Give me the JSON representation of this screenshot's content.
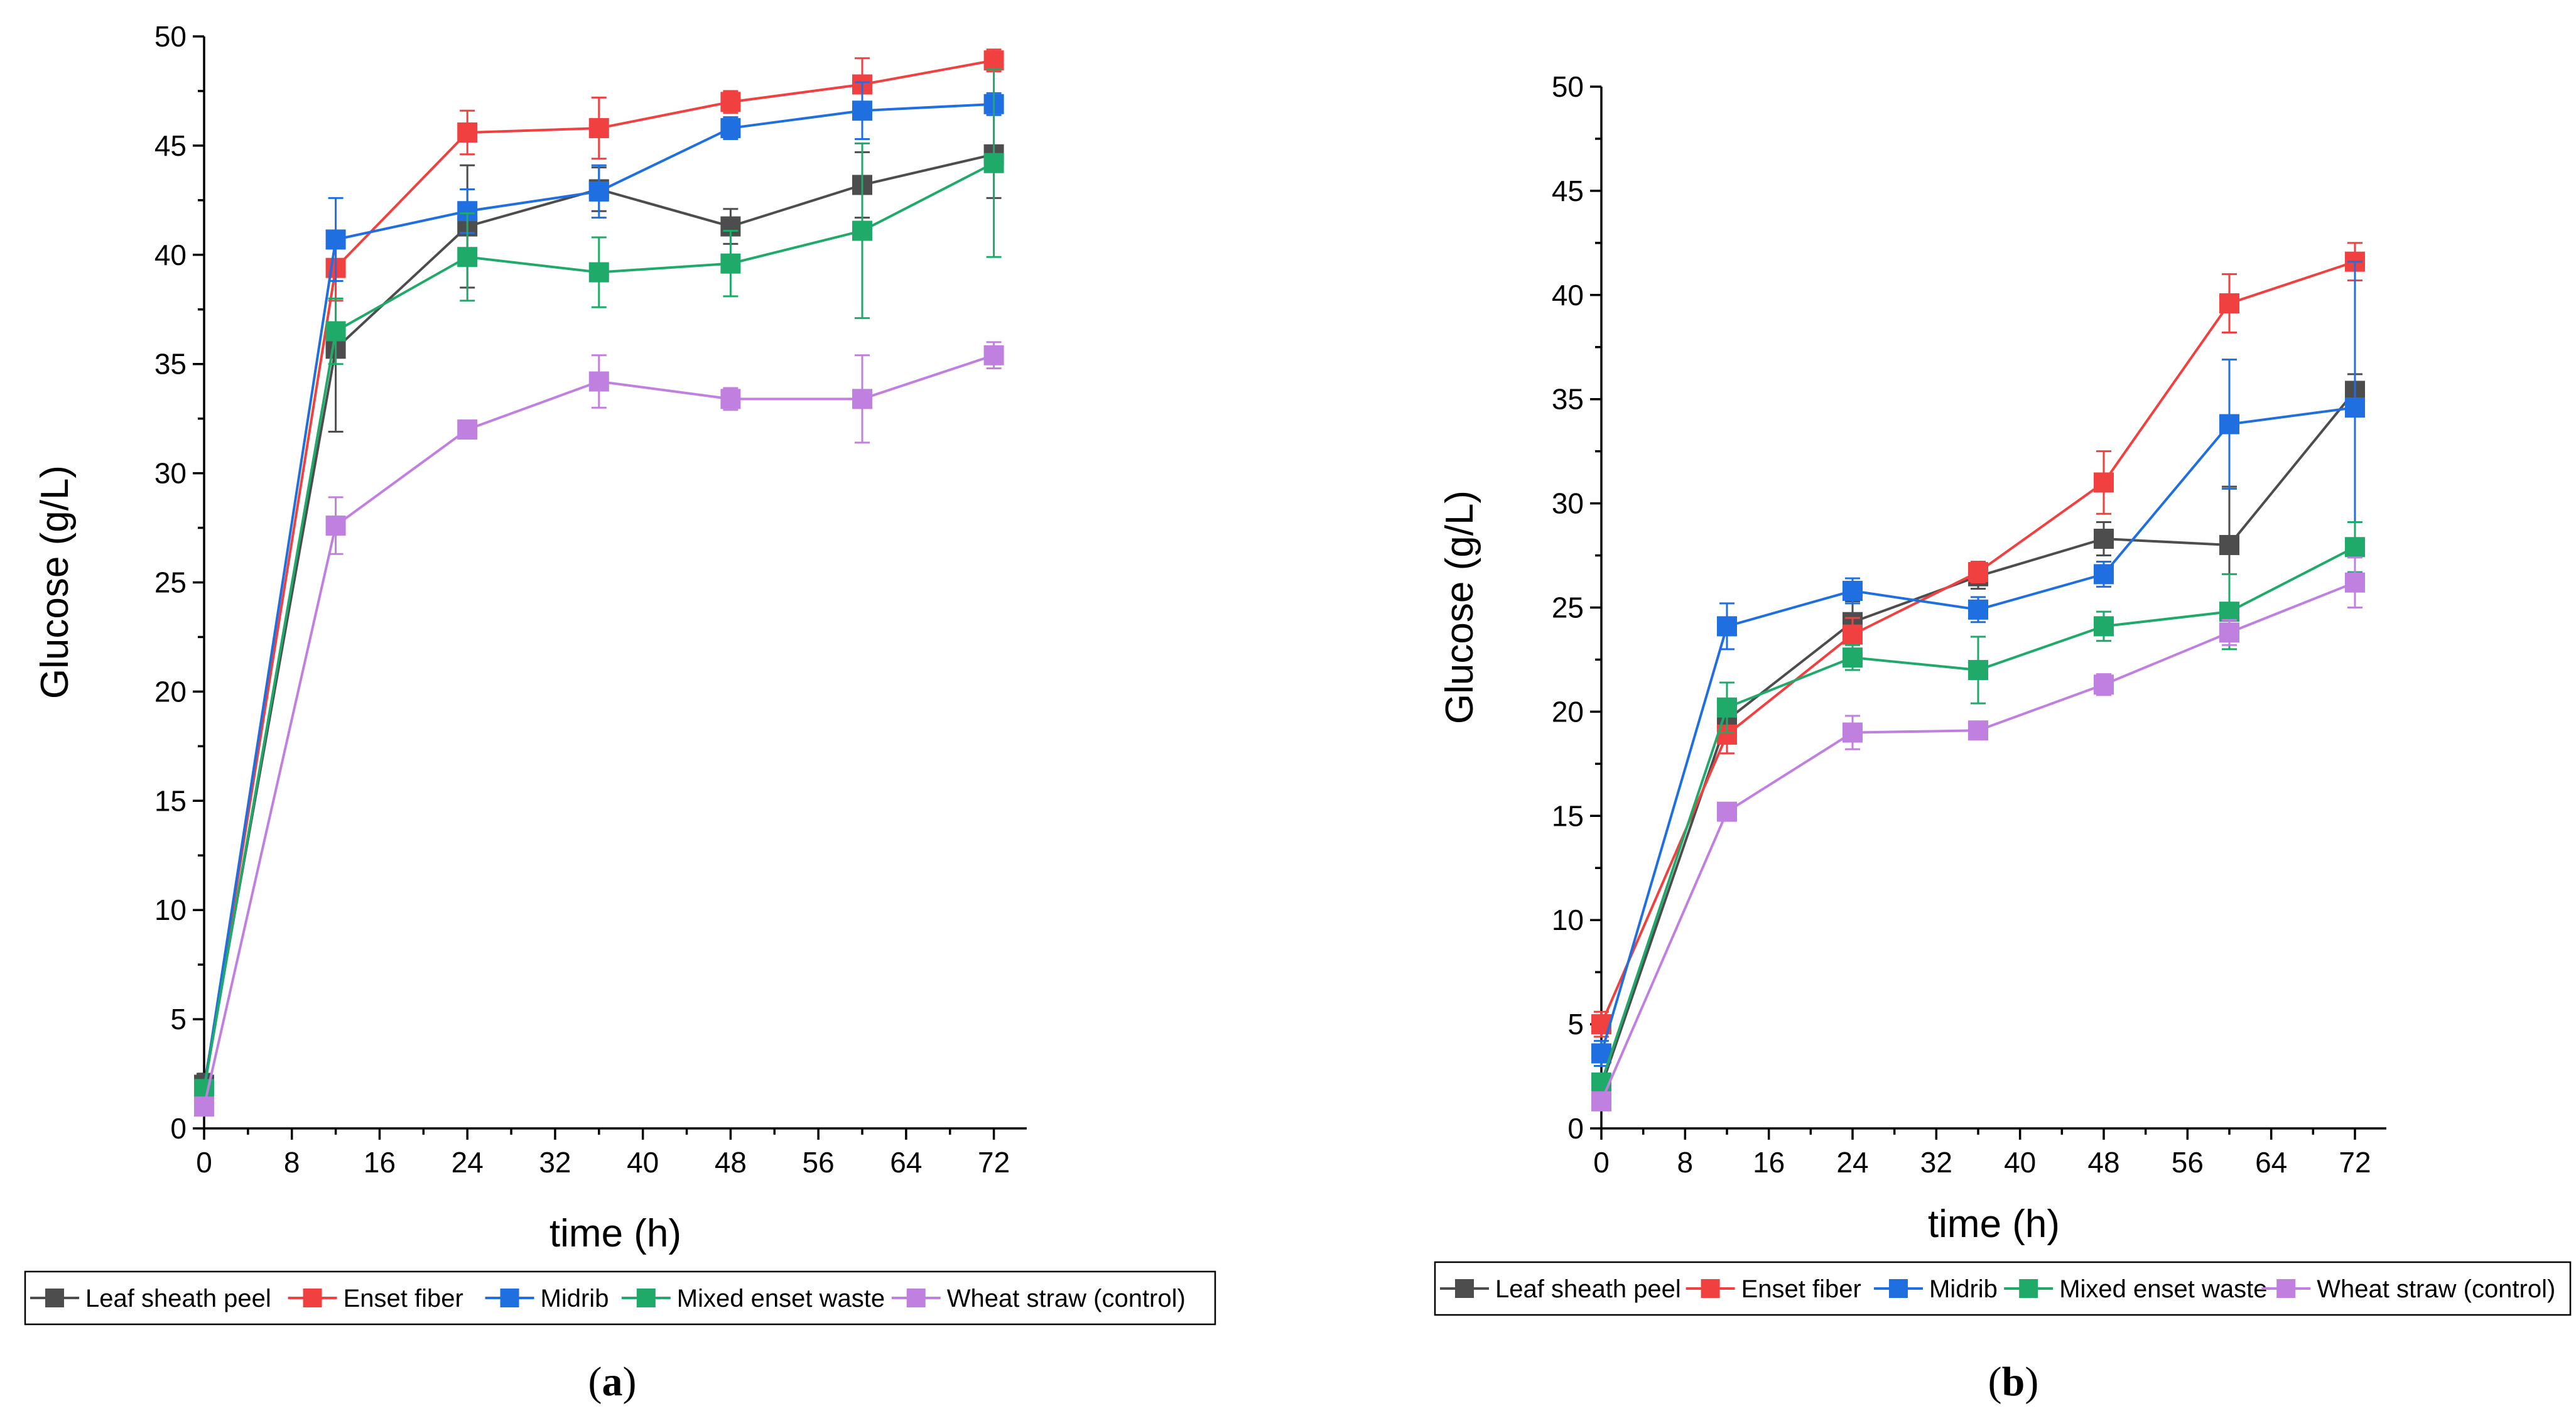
{
  "chart_data": [
    {
      "type": "line",
      "panel": "a",
      "xlabel": "time (h)",
      "ylabel": "Glucose (g/L)",
      "xlim": [
        0,
        75
      ],
      "ylim": [
        0,
        50
      ],
      "xticks": [
        0,
        8,
        16,
        24,
        32,
        40,
        48,
        56,
        64,
        72
      ],
      "yticks": [
        0,
        5,
        10,
        15,
        20,
        25,
        30,
        35,
        40,
        45,
        50
      ],
      "grid": false,
      "legend_position": "bottom",
      "x": [
        0,
        12,
        24,
        36,
        48,
        60,
        72
      ],
      "series": [
        {
          "name": "Leaf sheath peel",
          "color": "#4d4d4d",
          "values": [
            2.0,
            35.7,
            41.3,
            43.0,
            41.3,
            43.2,
            44.6
          ],
          "errors": [
            0.5,
            3.8,
            2.8,
            1.0,
            0.8,
            1.5,
            2.0
          ]
        },
        {
          "name": "Enset fiber",
          "color": "#f04040",
          "values": [
            1.8,
            39.4,
            45.6,
            45.8,
            47.0,
            47.8,
            48.9
          ],
          "errors": [
            0.4,
            1.5,
            1.0,
            1.4,
            0.5,
            1.2,
            0.5
          ]
        },
        {
          "name": "Midrib",
          "color": "#1f6fe0",
          "values": [
            1.8,
            40.7,
            42.0,
            42.9,
            45.8,
            46.6,
            46.9
          ],
          "errors": [
            0.4,
            1.9,
            1.0,
            1.2,
            0.5,
            1.3,
            0.5
          ]
        },
        {
          "name": "Mixed enset waste",
          "color": "#1faa6a",
          "values": [
            1.8,
            36.5,
            39.9,
            39.2,
            39.6,
            41.1,
            44.2
          ],
          "errors": [
            0.4,
            1.5,
            2.0,
            1.6,
            1.5,
            4.0,
            4.3
          ]
        },
        {
          "name": "Wheat straw (control)",
          "color": "#c080e0",
          "values": [
            1.0,
            27.6,
            32.0,
            34.2,
            33.4,
            33.4,
            35.4
          ],
          "errors": [
            0.3,
            1.3,
            0.4,
            1.2,
            0.5,
            2.0,
            0.6
          ]
        }
      ]
    },
    {
      "type": "line",
      "panel": "b",
      "xlabel": "time (h)",
      "ylabel": "Glucose (g/L)",
      "xlim": [
        0,
        75
      ],
      "ylim": [
        0,
        50
      ],
      "xticks": [
        0,
        8,
        16,
        24,
        32,
        40,
        48,
        56,
        64,
        72
      ],
      "yticks": [
        0,
        5,
        10,
        15,
        20,
        25,
        30,
        35,
        40,
        45,
        50
      ],
      "grid": false,
      "legend_position": "bottom",
      "x": [
        0,
        12,
        24,
        36,
        48,
        60,
        72
      ],
      "series": [
        {
          "name": "Leaf sheath peel",
          "color": "#4d4d4d",
          "values": [
            2.0,
            19.6,
            24.3,
            26.5,
            28.3,
            28.0,
            35.4
          ],
          "errors": [
            0.5,
            1.0,
            1.0,
            0.6,
            0.8,
            2.8,
            0.8
          ]
        },
        {
          "name": "Enset fiber",
          "color": "#f04040",
          "values": [
            5.0,
            18.9,
            23.7,
            26.7,
            31.0,
            39.6,
            41.6
          ],
          "errors": [
            0.6,
            0.9,
            0.8,
            0.5,
            1.5,
            1.4,
            0.9
          ]
        },
        {
          "name": "Midrib",
          "color": "#1f6fe0",
          "values": [
            3.6,
            24.1,
            25.8,
            24.9,
            26.6,
            33.8,
            34.6
          ],
          "errors": [
            0.6,
            1.1,
            0.6,
            0.6,
            0.6,
            3.1,
            7.0
          ]
        },
        {
          "name": "Mixed enset waste",
          "color": "#1faa6a",
          "values": [
            2.2,
            20.2,
            22.6,
            22.0,
            24.1,
            24.8,
            27.9
          ],
          "errors": [
            0.4,
            1.2,
            0.6,
            1.6,
            0.7,
            1.8,
            1.2
          ]
        },
        {
          "name": "Wheat straw (control)",
          "color": "#c080e0",
          "values": [
            1.3,
            15.2,
            19.0,
            19.1,
            21.3,
            23.8,
            26.2
          ],
          "errors": [
            0.3,
            0.4,
            0.8,
            0.4,
            0.5,
            0.6,
            1.2
          ]
        }
      ]
    }
  ],
  "panel_labels": [
    "(a)",
    "(b)"
  ]
}
